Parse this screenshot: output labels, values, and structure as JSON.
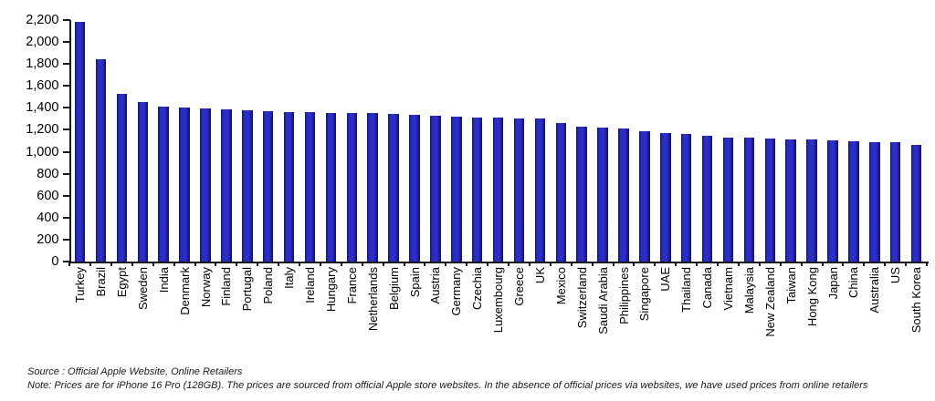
{
  "chart_data": {
    "type": "bar",
    "title": "",
    "xlabel": "",
    "ylabel": "",
    "categories": [
      "Turkey",
      "Brazil",
      "Egypt",
      "Sweden",
      "India",
      "Denmark",
      "Norway",
      "Finland",
      "Portugal",
      "Poland",
      "Italy",
      "Ireland",
      "Hungary",
      "France",
      "Netherlands",
      "Belgium",
      "Spain",
      "Austria",
      "Germany",
      "Czechia",
      "Luxembourg",
      "Greece",
      "UK",
      "Mexico",
      "Switzerland",
      "Saudi Arabia",
      "Philippines",
      "Singapore",
      "UAE",
      "Thailand",
      "Canada",
      "Vietnam",
      "Malaysia",
      "New Zealand",
      "Taiwan",
      "Hong Kong",
      "Japan",
      "China",
      "Australia",
      "US",
      "South Korea"
    ],
    "values": [
      2185,
      1845,
      1530,
      1450,
      1410,
      1400,
      1395,
      1385,
      1375,
      1370,
      1365,
      1360,
      1355,
      1350,
      1350,
      1345,
      1340,
      1330,
      1320,
      1315,
      1310,
      1305,
      1300,
      1265,
      1230,
      1220,
      1215,
      1185,
      1170,
      1165,
      1145,
      1130,
      1125,
      1120,
      1115,
      1110,
      1105,
      1100,
      1090,
      1085,
      1065
    ],
    "ylim": [
      0,
      2200
    ],
    "ytick_step": 200,
    "ytick_labels": [
      "0",
      "200",
      "400",
      "600",
      "800",
      "1,000",
      "1,200",
      "1,400",
      "1,600",
      "1,800",
      "2,000",
      "2,200"
    ],
    "grid": "off",
    "legend": "none",
    "bar_color_center": "#2d2dcb",
    "bar_color_edge": "#10107a",
    "axis_color": "#1a1a1a"
  },
  "footer": {
    "source": "Source : Official Apple Website, Online Retailers",
    "note": "Note: Prices are for iPhone 16 Pro (128GB). The prices are sourced from official Apple store websites. In the absence of official prices via websites, we have used prices from online retailers"
  }
}
